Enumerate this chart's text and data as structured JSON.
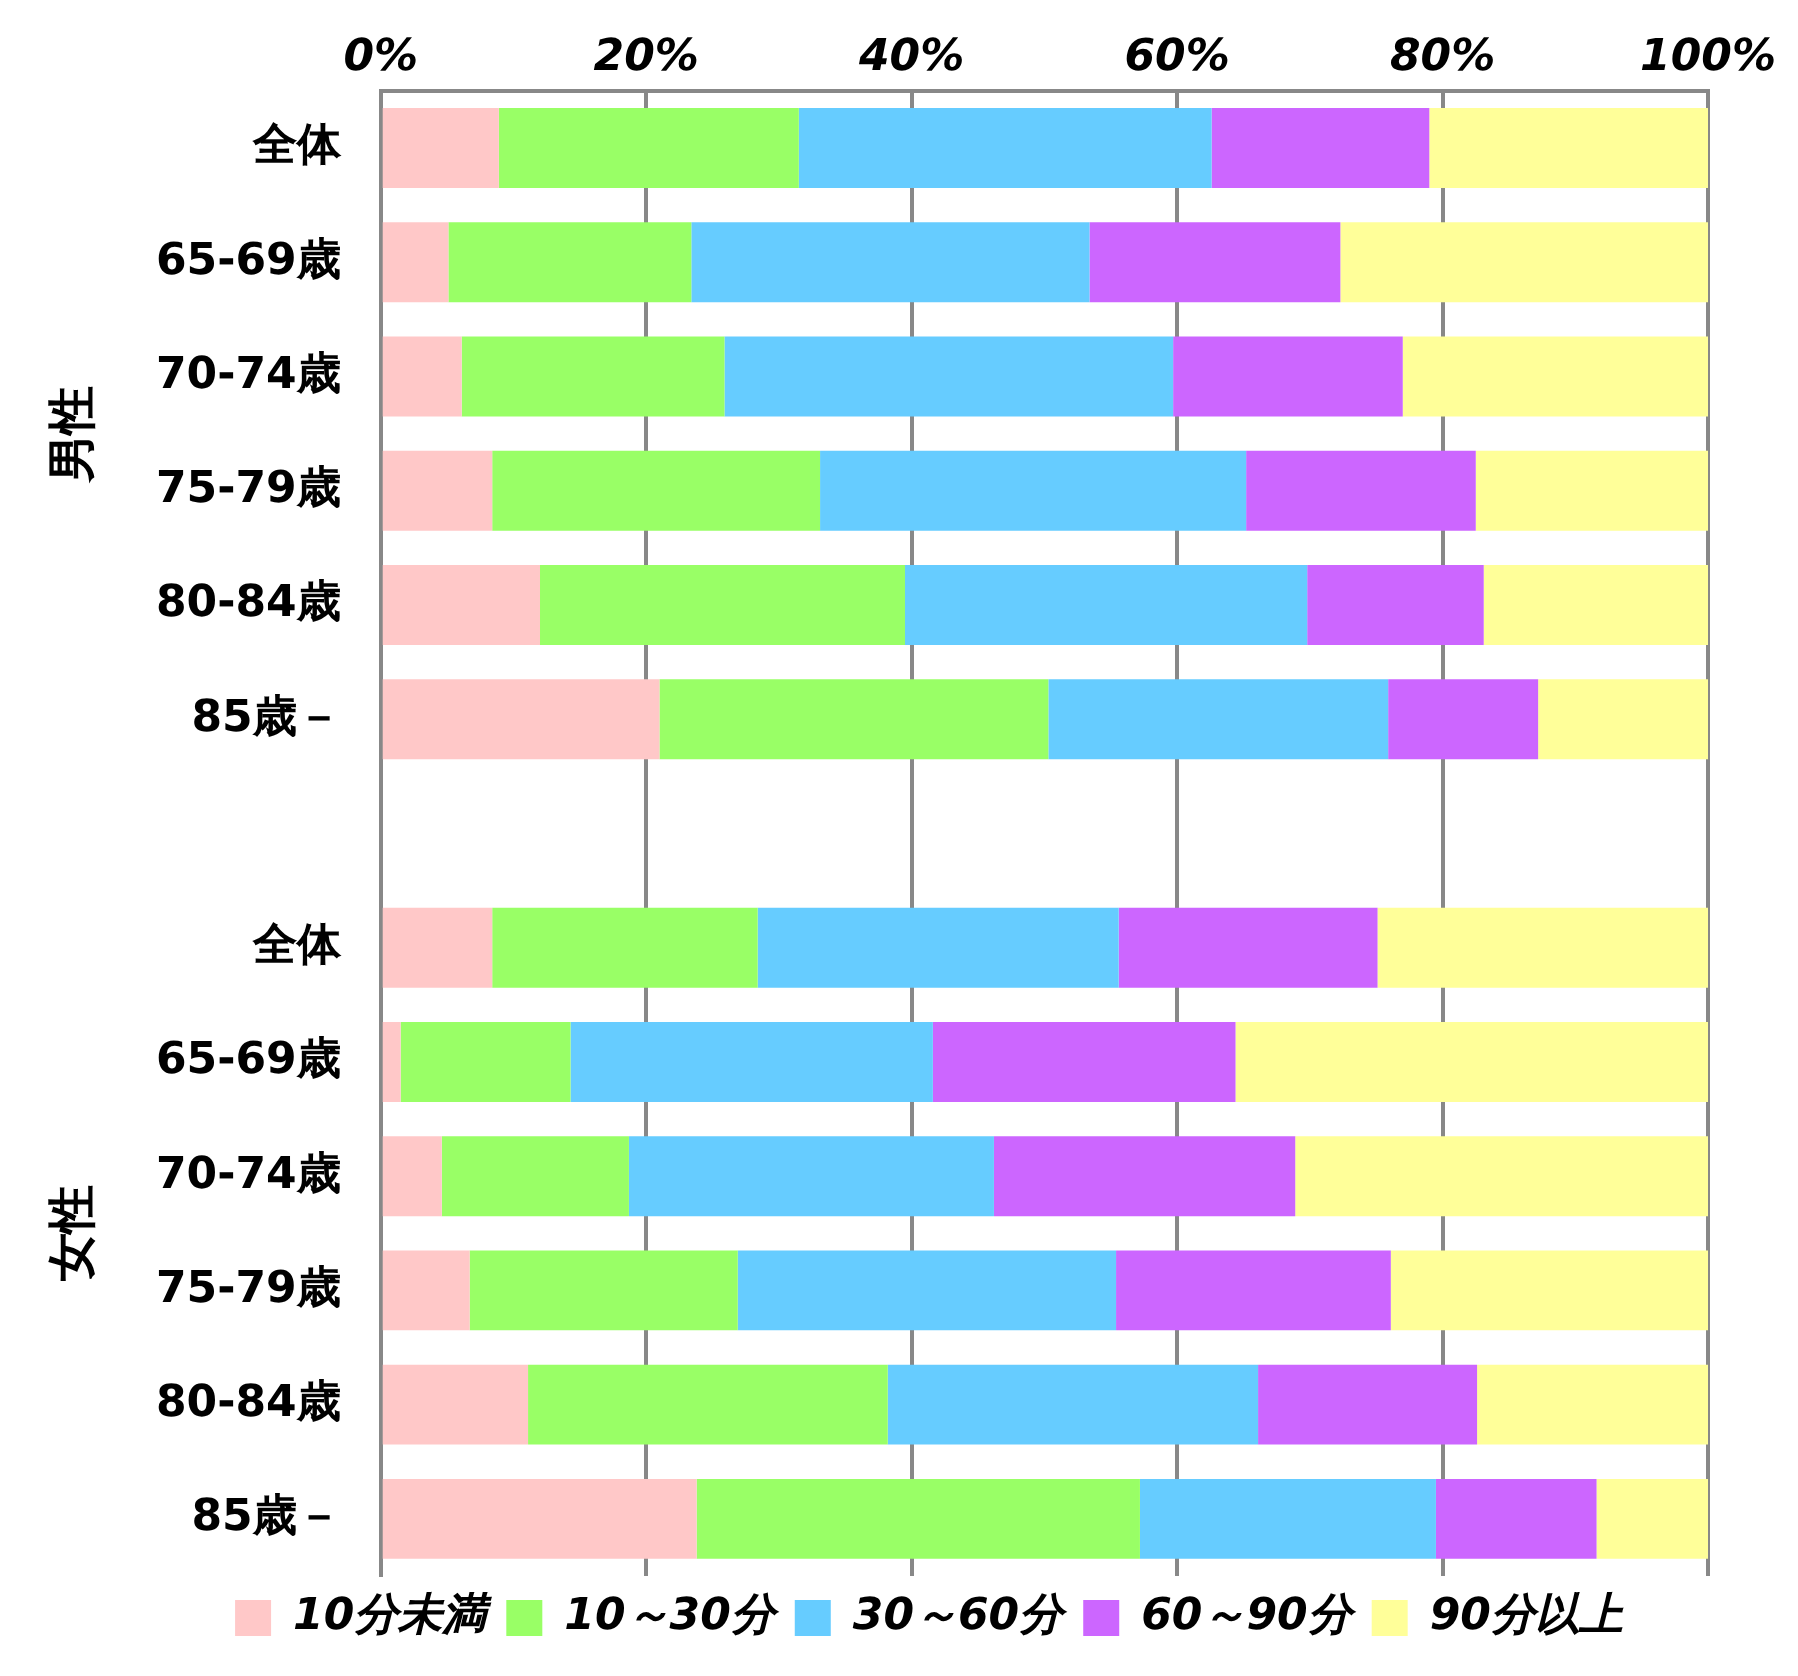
{
  "chart_data": {
    "type": "bar",
    "orientation": "horizontal",
    "stacked": true,
    "categories": [
      "全体",
      "65-69歳",
      "70-74歳",
      "75-79歳",
      "80-84歳",
      "85歳－",
      null,
      "全体",
      "65-69歳",
      "70-74歳",
      "75-79歳",
      "80-84歳",
      "85歳－"
    ],
    "series": [
      {
        "name": "10分未満",
        "color": "#ffc8c8",
        "values": [
          8.9,
          5.1,
          6.1,
          8.4,
          12.0,
          21.0,
          null,
          8.4,
          1.5,
          4.6,
          6.7,
          11.1,
          23.8
        ]
      },
      {
        "name": "10～30分",
        "color": "#99ff66",
        "values": [
          22.6,
          18.3,
          19.8,
          24.7,
          27.5,
          29.3,
          null,
          20.0,
          12.8,
          14.1,
          20.2,
          27.1,
          33.4
        ]
      },
      {
        "name": "30～60分",
        "color": "#66ccff",
        "values": [
          31.1,
          30.0,
          33.8,
          32.1,
          30.3,
          25.6,
          null,
          27.2,
          27.3,
          27.5,
          28.5,
          27.9,
          22.3
        ]
      },
      {
        "name": "60～90分",
        "color": "#cc66ff",
        "values": [
          16.4,
          18.9,
          17.3,
          17.3,
          13.3,
          11.3,
          null,
          19.5,
          22.8,
          22.7,
          20.7,
          16.5,
          12.1
        ]
      },
      {
        "name": "90分以上",
        "color": "#ffff99",
        "values": [
          21.0,
          27.7,
          23.0,
          17.5,
          16.9,
          12.8,
          null,
          24.9,
          35.6,
          31.1,
          23.9,
          17.4,
          8.4
        ]
      }
    ],
    "xlim": [
      0,
      100
    ],
    "xticks": [
      {
        "value": 0,
        "label": "0%"
      },
      {
        "value": 20,
        "label": "20%"
      },
      {
        "value": 40,
        "label": "40%"
      },
      {
        "value": 60,
        "label": "60%"
      },
      {
        "value": 80,
        "label": "80%"
      },
      {
        "value": 100,
        "label": "100%"
      }
    ],
    "grid": "x",
    "legend": "bottom",
    "annotations": [
      "男性",
      "女性"
    ]
  }
}
